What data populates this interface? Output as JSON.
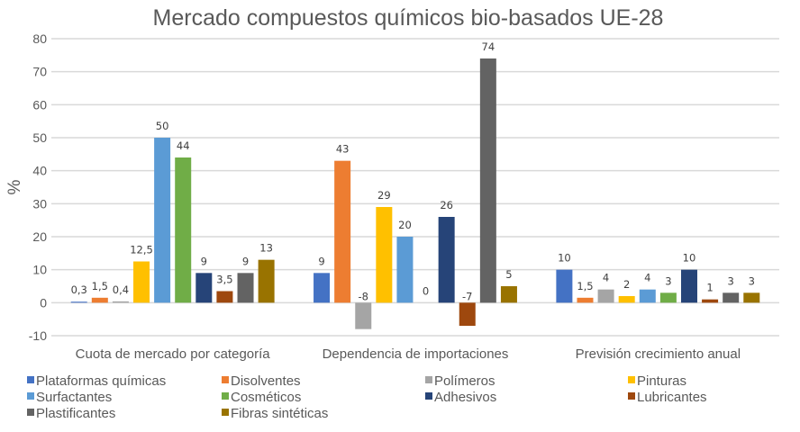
{
  "chart_data": {
    "type": "bar",
    "title": "Mercado compuestos químicos bio-basados UE-28",
    "xlabel": "",
    "ylabel": "%",
    "ylim": [
      -10,
      80
    ],
    "yticks": [
      -10,
      0,
      10,
      20,
      30,
      40,
      50,
      60,
      70,
      80
    ],
    "grid": true,
    "legend_position": "bottom",
    "categories": [
      "Cuota de mercado por categoría",
      "Dependencia de importaciones",
      "Previsión crecimiento anual"
    ],
    "series": [
      {
        "name": "Plataformas químicas",
        "color": "#4472C4",
        "values": [
          0.3,
          9,
          10
        ],
        "labels": [
          "0,3",
          "9",
          "10"
        ]
      },
      {
        "name": "Disolventes",
        "color": "#ED7D31",
        "values": [
          1.5,
          43,
          1.5
        ],
        "labels": [
          "1,5",
          "43",
          "1,5"
        ]
      },
      {
        "name": "Polímeros",
        "color": "#A5A5A5",
        "values": [
          0.4,
          -8,
          4
        ],
        "labels": [
          "0,4",
          "-8",
          "4"
        ]
      },
      {
        "name": "Pinturas",
        "color": "#FFC000",
        "values": [
          12.5,
          29,
          2
        ],
        "labels": [
          "12,5",
          "29",
          "2"
        ]
      },
      {
        "name": "Surfactantes",
        "color": "#5B9BD5",
        "values": [
          50,
          20,
          4
        ],
        "labels": [
          "50",
          "20",
          "4"
        ]
      },
      {
        "name": "Cosméticos",
        "color": "#70AD47",
        "values": [
          44,
          0,
          3
        ],
        "labels": [
          "44",
          "0",
          "3"
        ]
      },
      {
        "name": "Adhesivos",
        "color": "#264478",
        "values": [
          9,
          26,
          10
        ],
        "labels": [
          "9",
          "26",
          "10"
        ]
      },
      {
        "name": "Lubricantes",
        "color": "#9E480E",
        "values": [
          3.5,
          -7,
          1
        ],
        "labels": [
          "3,5",
          "-7",
          "1"
        ]
      },
      {
        "name": "Plastificantes",
        "color": "#636363",
        "values": [
          9,
          74,
          3
        ],
        "labels": [
          "9",
          "74",
          "3"
        ]
      },
      {
        "name": "Fibras sintéticas",
        "color": "#997300",
        "values": [
          13,
          5,
          3
        ],
        "labels": [
          "13",
          "5",
          "3"
        ]
      }
    ]
  }
}
